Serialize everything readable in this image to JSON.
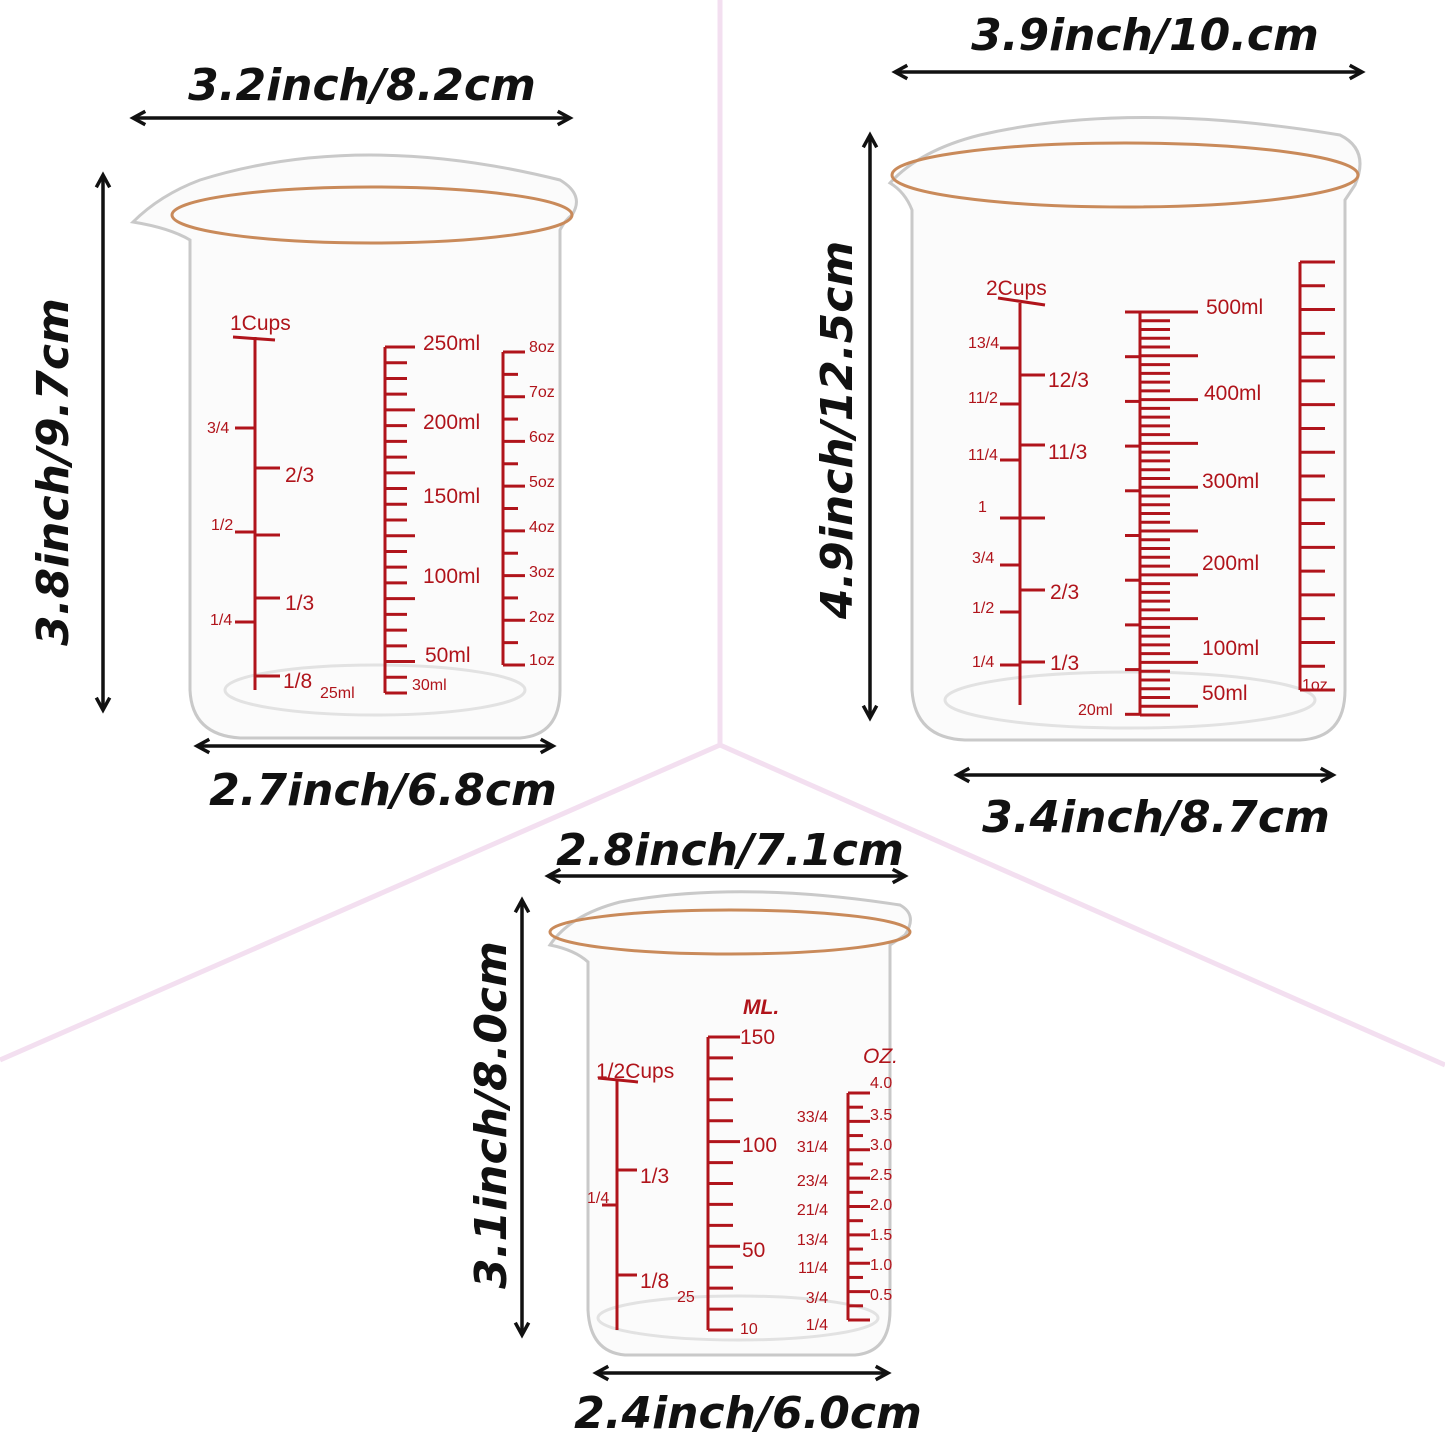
{
  "colors": {
    "marking": "#b0141b",
    "background_lines": "#f3dff0",
    "text": "#111111"
  },
  "beakers": [
    {
      "name": "1 cup beaker",
      "width_top": "3.2inch/8.2cm",
      "height": "3.8inch/9.7cm",
      "width_bottom": "2.7inch/6.8cm",
      "cups_title": "1Cups",
      "cups_left": [
        "3/4",
        "1/2",
        "1/4"
      ],
      "cups_right": [
        "2/3",
        "1/3",
        "1/8"
      ],
      "ml": [
        "250ml",
        "200ml",
        "150ml",
        "100ml",
        "50ml"
      ],
      "ml_extra": [
        "25ml",
        "30ml"
      ],
      "oz": [
        "8oz",
        "7oz",
        "6oz",
        "5oz",
        "4oz",
        "3oz",
        "2oz",
        "1oz"
      ]
    },
    {
      "name": "2 cup beaker",
      "width_top": "3.9inch/10.cm",
      "height": "4.9inch/12.5cm",
      "width_bottom": "3.4inch/8.7cm",
      "cups_title": "2Cups",
      "cups_left": [
        "13/4",
        "11/2",
        "11/4",
        "1",
        "3/4",
        "1/2",
        "1/4"
      ],
      "cups_right": [
        "12/3",
        "11/3",
        "2/3",
        "1/3"
      ],
      "ml": [
        "500ml",
        "400ml",
        "300ml",
        "200ml",
        "100ml",
        "50ml"
      ],
      "ml_extra": [
        "20ml"
      ],
      "oz": [
        "1oz"
      ]
    },
    {
      "name": "1/2 cup beaker",
      "width_top": "2.8inch/7.1cm",
      "height": "3.1inch/8.0cm",
      "width_bottom": "2.4inch/6.0cm",
      "ml_title": "ML.",
      "oz_title": "OZ.",
      "cups_title": "1/2Cups",
      "cups_left": [
        "1/4"
      ],
      "cups_right": [
        "1/3",
        "1/8"
      ],
      "ml": [
        "150",
        "100",
        "50",
        "10"
      ],
      "ml_extra": [
        "25"
      ],
      "oz": [
        "4.0",
        "3.5",
        "3.0",
        "2.5",
        "2.0",
        "1.5",
        "1.0",
        "0.5"
      ],
      "oz_left": [
        "33/4",
        "31/4",
        "23/4",
        "21/4",
        "13/4",
        "11/4",
        "3/4",
        "1/4"
      ]
    }
  ]
}
